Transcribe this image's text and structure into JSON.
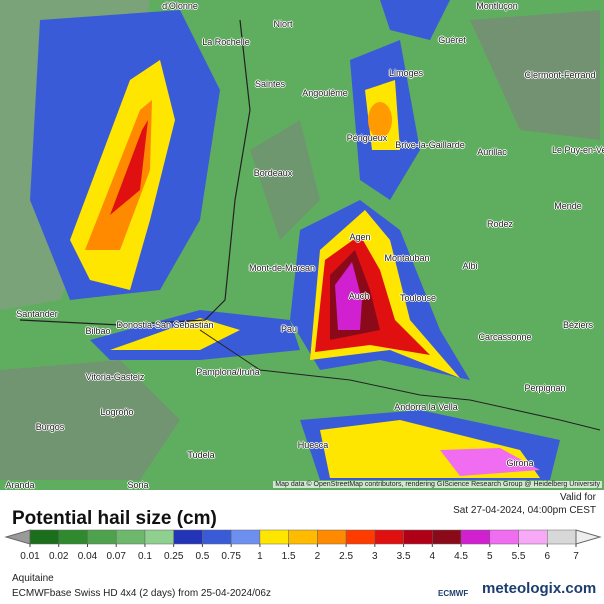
{
  "cities": [
    "d'Olonne",
    "Niort",
    "La Rochelle",
    "Guéret",
    "Montluçon",
    "Limoges",
    "Clermont-Ferrand",
    "Saintes",
    "Angoulême",
    "Périgueux",
    "Brive-la-Gaillarde",
    "Aurillac",
    "Le Puy-en-Velay",
    "Bordeaux",
    "Mende",
    "Rodez",
    "Agen",
    "Montauban",
    "Albi",
    "Mont-de-Marsan",
    "Auch",
    "Toulouse",
    "Béziers",
    "Santander",
    "Bilbao",
    "Donostia-San Sebastián",
    "Pau",
    "Carcassonne",
    "Vitoria-Gasteiz",
    "Pamplona/Iruña",
    "Perpignan",
    "Andorra la Vella",
    "Logroño",
    "Burgos",
    "Huesca",
    "Tudela",
    "Girona",
    "Aranda",
    "Soria"
  ],
  "attribution": "Map data © OpenStreetMap contributors, rendering GIScience Research Group @ Heidelberg University",
  "legend": {
    "title": "Potential hail size (cm)",
    "labels": [
      0.01,
      0.02,
      0.04,
      0.07,
      0.1,
      0.25,
      0.5,
      0.75,
      1,
      1.5,
      2,
      2.5,
      3,
      3.5,
      4,
      4.5,
      5,
      5.5,
      6,
      7
    ],
    "colors": [
      "#9a9a9a",
      "#1b6e1b",
      "#2f8a2f",
      "#4ea24e",
      "#6db86d",
      "#8fcf8f",
      "#2434b8",
      "#3a5bd8",
      "#6d8ff0",
      "#ffe600",
      "#ffbb00",
      "#ff8a00",
      "#ff3c00",
      "#e01010",
      "#b00018",
      "#8b0a1a",
      "#d020d0",
      "#f06cf0",
      "#f7a8f7",
      "#d8d8d8",
      "#eeeeee"
    ]
  },
  "valid": {
    "label": "Valid for",
    "time": "Sat 27-04-2024, 04:00pm CEST"
  },
  "footer": {
    "region": "Aquitaine",
    "model": "ECMWFbase Swiss HD 4x4 (2 days) from 25-04-2024/06z",
    "logo": "ECMWF",
    "brand": "meteologix.com"
  }
}
